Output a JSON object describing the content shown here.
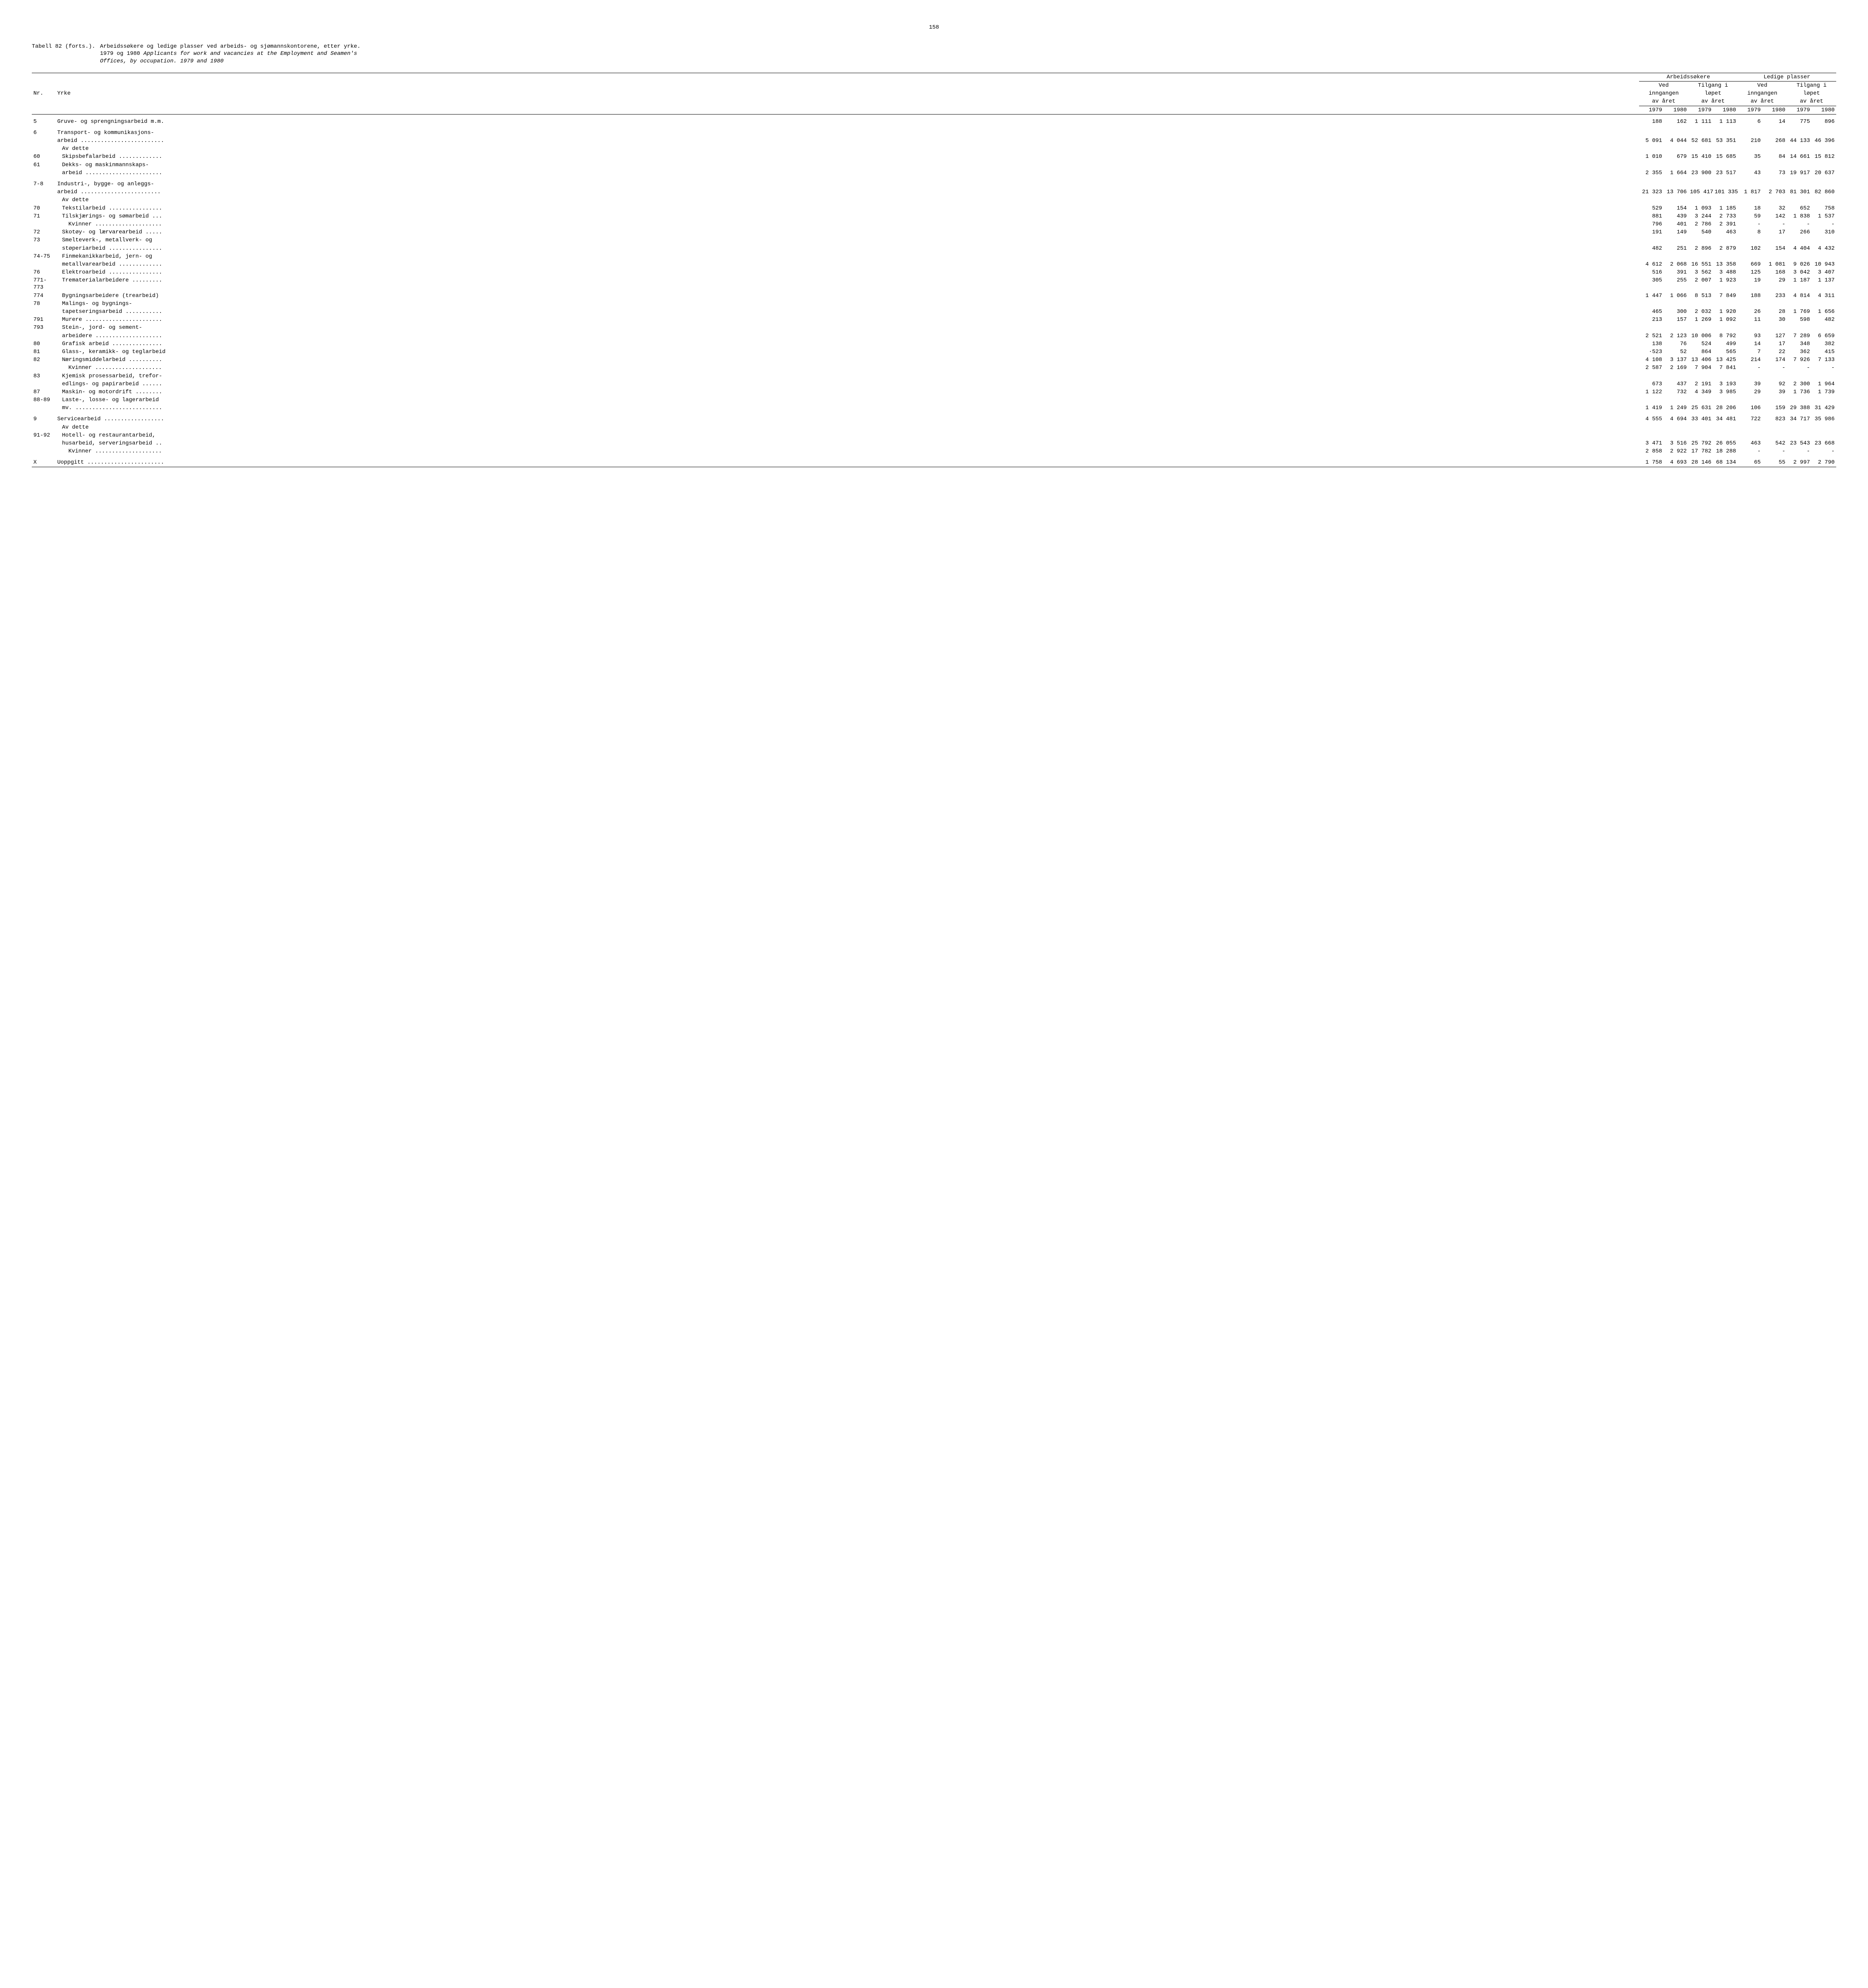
{
  "page_number": "158",
  "table_label": "Tabell 82 (forts.).",
  "title_line1": "Arbeidssøkere og ledige plasser ved arbeids- og sjømannskontorene, etter yrke.",
  "title_line2a": "1979 og 1980 ",
  "title_line2b": "Applicants for work and vacancies at the Employment and Seamen's",
  "title_line3": "Offices, by occupation.  1979 and 1980",
  "headers": {
    "nr": "Nr.",
    "yrke": "Yrke",
    "arbeidssokere": "Arbeidssøkere",
    "ledige_plasser": "Ledige plasser",
    "ved_inngangen": "Ved",
    "inngangen": "inngangen",
    "av_aret": "av året",
    "tilgang_i": "Tilgang i",
    "lopet": "løpet",
    "y1979": "1979",
    "y1980": "1980"
  },
  "rows": [
    {
      "nr": "5",
      "label": "Gruve- og sprengningsarbeid m.m.",
      "v": [
        "188",
        "162",
        "1 111",
        "1 113",
        "6",
        "14",
        "775",
        "896"
      ],
      "style": "normal",
      "indent": 0,
      "spacer_after": true
    },
    {
      "nr": "6",
      "label": "Transport- og kommunikasjons-",
      "v": [
        "",
        "",
        "",
        "",
        "",
        "",
        "",
        ""
      ],
      "indent": 0
    },
    {
      "nr": "",
      "label": "arbeid .........................",
      "v": [
        "5 091",
        "4 044",
        "52 681",
        "53 351",
        "210",
        "268",
        "44 133",
        "46 396"
      ],
      "indent": 0
    },
    {
      "nr": "",
      "label": "Av dette",
      "v": [
        "",
        "",
        "",
        "",
        "",
        "",
        "",
        ""
      ],
      "indent": 1
    },
    {
      "nr": "60",
      "label": "Skipsbefalarbeid .............",
      "v": [
        "1 010",
        "679",
        "15 410",
        "15 685",
        "35",
        "84",
        "14 661",
        "15 812"
      ],
      "indent": 1
    },
    {
      "nr": "61",
      "label": "Dekks- og maskinmannskaps-",
      "v": [
        "",
        "",
        "",
        "",
        "",
        "",
        "",
        ""
      ],
      "indent": 1
    },
    {
      "nr": "",
      "label": "arbeid .......................",
      "v": [
        "2 355",
        "1 664",
        "23 900",
        "23 517",
        "43",
        "73",
        "19 917",
        "20 637"
      ],
      "indent": 1,
      "spacer_after": true
    },
    {
      "nr": "7-8",
      "label": "Industri-, bygge- og anleggs-",
      "v": [
        "",
        "",
        "",
        "",
        "",
        "",
        "",
        ""
      ],
      "indent": 0
    },
    {
      "nr": "",
      "label": "arbeid ........................",
      "v": [
        "21 323",
        "13 706",
        "105 417",
        "101 335",
        "1 817",
        "2 703",
        "81 301",
        "82 860"
      ],
      "indent": 0
    },
    {
      "nr": "",
      "label": "Av dette",
      "v": [
        "",
        "",
        "",
        "",
        "",
        "",
        "",
        ""
      ],
      "indent": 1
    },
    {
      "nr": "70",
      "label": "Tekstilarbeid ................",
      "v": [
        "529",
        "154",
        "1 093",
        "1 185",
        "18",
        "32",
        "652",
        "758"
      ],
      "indent": 1
    },
    {
      "nr": "71",
      "label": "Tilskjærings- og sømarbeid ...",
      "v": [
        "881",
        "439",
        "3 244",
        "2 733",
        "59",
        "142",
        "1 838",
        "1 537"
      ],
      "indent": 1
    },
    {
      "nr": "",
      "label": "Kvinner ....................",
      "v": [
        "796",
        "401",
        "2 786",
        "2 391",
        "-",
        "-",
        "-",
        "-"
      ],
      "indent": 2
    },
    {
      "nr": "72",
      "label": "Skotøy- og lærvarearbeid .....",
      "v": [
        "191",
        "149",
        "540",
        "463",
        "8",
        "17",
        "266",
        "310"
      ],
      "indent": 1
    },
    {
      "nr": "73",
      "label": "Smelteverk-, metallverk- og",
      "v": [
        "",
        "",
        "",
        "",
        "",
        "",
        "",
        ""
      ],
      "indent": 1
    },
    {
      "nr": "",
      "label": "støperiarbeid ................",
      "v": [
        "482",
        "251",
        "2 896",
        "2 879",
        "102",
        "154",
        "4 404",
        "4 432"
      ],
      "indent": 1
    },
    {
      "nr": "74-75",
      "label": "Finmekanikkarbeid, jern- og",
      "v": [
        "",
        "",
        "",
        "",
        "",
        "",
        "",
        ""
      ],
      "indent": 1
    },
    {
      "nr": "",
      "label": "metallvarearbeid .............",
      "v": [
        "4 612",
        "2 068",
        "16 551",
        "13 358",
        "669",
        "1 081",
        "9 026",
        "10 943"
      ],
      "indent": 1
    },
    {
      "nr": "76",
      "label": "Elektroarbeid ................",
      "v": [
        "516",
        "391",
        "3 562",
        "3 488",
        "125",
        "168",
        "3 042",
        "3 407"
      ],
      "indent": 1
    },
    {
      "nr": "771-773",
      "label": "Trematerialarbeidere .........",
      "v": [
        "305",
        "255",
        "2 007",
        "1 923",
        "19",
        "29",
        "1 187",
        "1 137"
      ],
      "indent": 1
    },
    {
      "nr": "774",
      "label": "Bygningsarbeidere (trearbeid)",
      "v": [
        "1 447",
        "1 066",
        "8 513",
        "7 849",
        "188",
        "233",
        "4 814",
        "4 311"
      ],
      "indent": 1
    },
    {
      "nr": "78",
      "label": "Malings- og bygnings-",
      "v": [
        "",
        "",
        "",
        "",
        "",
        "",
        "",
        ""
      ],
      "indent": 1
    },
    {
      "nr": "",
      "label": "tapetseringsarbeid ...........",
      "v": [
        "465",
        "300",
        "2 032",
        "1 920",
        "26",
        "28",
        "1 769",
        "1 656"
      ],
      "indent": 1
    },
    {
      "nr": "791",
      "label": "Murere .......................",
      "v": [
        "213",
        "157",
        "1 269",
        "1 092",
        "11",
        "30",
        "598",
        "482"
      ],
      "indent": 1
    },
    {
      "nr": "793",
      "label": "Stein-, jord- og sement-",
      "v": [
        "",
        "",
        "",
        "",
        "",
        "",
        "",
        ""
      ],
      "indent": 1
    },
    {
      "nr": "",
      "label": "arbeidere ....................",
      "v": [
        "2 521",
        "2 123",
        "10 006",
        "8 792",
        "93",
        "127",
        "7 289",
        "6 659"
      ],
      "indent": 1
    },
    {
      "nr": "80",
      "label": "Grafisk arbeid ...............",
      "v": [
        "138",
        "76",
        "524",
        "499",
        "14",
        "17",
        "348",
        "382"
      ],
      "indent": 1
    },
    {
      "nr": "81",
      "label": "Glass-, keramikk- og teglarbeid",
      "v": [
        "·523",
        "52",
        "864",
        "565",
        "7",
        "22",
        "362",
        "415"
      ],
      "indent": 1
    },
    {
      "nr": "82",
      "label": "Næringsmiddelarbeid ..........",
      "v": [
        "4 108",
        "3 137",
        "13 406",
        "13 425",
        "214",
        "174",
        "7 926",
        "7 133"
      ],
      "indent": 1
    },
    {
      "nr": "",
      "label": "Kvinner ....................",
      "v": [
        "2 587",
        "2 169",
        "7 904",
        "7 841",
        "-",
        "-",
        "-",
        "-"
      ],
      "indent": 2
    },
    {
      "nr": "83",
      "label": "Kjemisk prosessarbeid, trefor-",
      "v": [
        "",
        "",
        "",
        "",
        "",
        "",
        "",
        ""
      ],
      "indent": 1
    },
    {
      "nr": "",
      "label": "edlings- og papirarbeid ......",
      "v": [
        "673",
        "437",
        "2 191",
        "3 193",
        "39",
        "92",
        "2 300",
        "1 964"
      ],
      "indent": 1
    },
    {
      "nr": "87",
      "label": "Maskin- og motordrift ........",
      "v": [
        "1 122",
        "732",
        "4 349",
        "3 985",
        "29",
        "39",
        "1 736",
        "1 739"
      ],
      "indent": 1
    },
    {
      "nr": "88-89",
      "label": "Laste-, losse- og lagerarbeid",
      "v": [
        "",
        "",
        "",
        "",
        "",
        "",
        "",
        ""
      ],
      "indent": 1
    },
    {
      "nr": "",
      "label": "mv. ..........................",
      "v": [
        "1 419",
        "1 249",
        "25 631",
        "28 206",
        "106",
        "159",
        "29 388",
        "31 429"
      ],
      "indent": 1,
      "spacer_after": true
    },
    {
      "nr": "9",
      "label": "Servicearbeid ..................",
      "v": [
        "4 555",
        "4 694",
        "33 401",
        "34 481",
        "722",
        "823",
        "34 717",
        "35 986"
      ],
      "indent": 0
    },
    {
      "nr": "",
      "label": "Av dette",
      "v": [
        "",
        "",
        "",
        "",
        "",
        "",
        "",
        ""
      ],
      "indent": 1
    },
    {
      "nr": "91-92",
      "label": "Hotell- og restaurantarbeid,",
      "v": [
        "",
        "",
        "",
        "",
        "",
        "",
        "",
        ""
      ],
      "indent": 1
    },
    {
      "nr": "",
      "label": "husarbeid, serveringsarbeid ..",
      "v": [
        "3 471",
        "3 516",
        "25 792",
        "26 055",
        "463",
        "542",
        "23 543",
        "23 668"
      ],
      "indent": 1
    },
    {
      "nr": "",
      "label": "Kvinner ....................",
      "v": [
        "2 858",
        "2 922",
        "17 782",
        "18 288",
        "-",
        "-",
        "-",
        "-"
      ],
      "indent": 2,
      "spacer_after": true
    },
    {
      "nr": "X",
      "label": "Uoppgitt .......................",
      "v": [
        "1 758",
        "4 693",
        "28 146",
        "68 134",
        "65",
        "55",
        "2 997",
        "2 790"
      ],
      "indent": 0
    }
  ]
}
